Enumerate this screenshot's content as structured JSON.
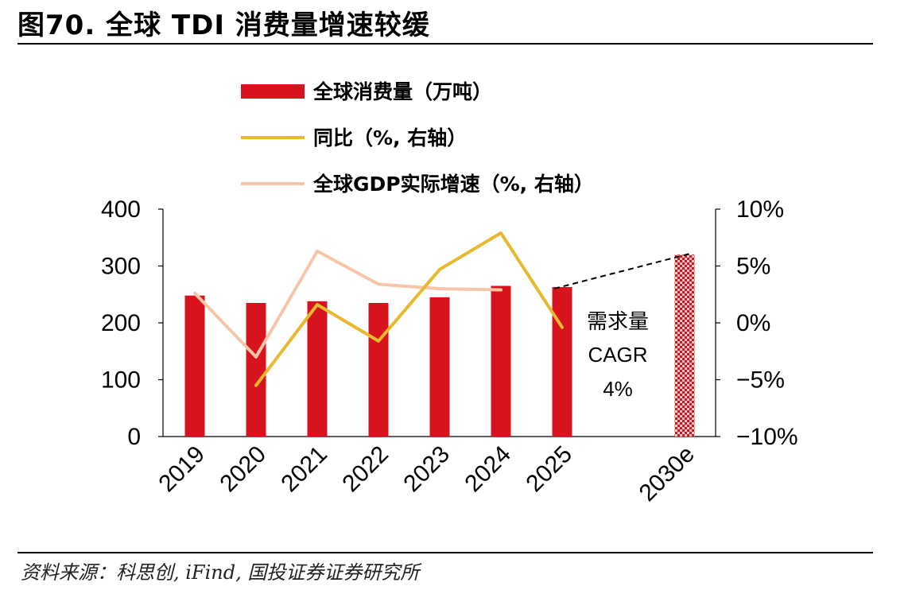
{
  "header": {
    "title": "图70. 全球 TDI 消费量增速较缓"
  },
  "footer": {
    "source": "资料来源：科思创, iFind, 国投证券证券研究所"
  },
  "colors": {
    "bar": "#d7141e",
    "yoy_line": "#e8b82e",
    "gdp_line": "#f7c6a8",
    "hatch_bg": "#f3c9cc"
  },
  "chart_data": {
    "type": "bar",
    "categories": [
      "2019",
      "2020",
      "2021",
      "2022",
      "2023",
      "2024",
      "2025",
      "",
      "2030e"
    ],
    "ylim": [
      0,
      400
    ],
    "y_ticks": [
      "0",
      "100",
      "200",
      "300",
      "400"
    ],
    "y2lim": [
      -10,
      10
    ],
    "y2_ticks": [
      "−10%",
      "−5%",
      "0%",
      "5%",
      "10%"
    ],
    "legend": [
      {
        "key": "consumption",
        "label": "全球消费量（万吨）",
        "marker": "bar"
      },
      {
        "key": "yoy",
        "label": "同比（%, 右轴）",
        "marker": "line"
      },
      {
        "key": "gdp",
        "label": "全球GDP实际增速（%, 右轴）",
        "marker": "line"
      }
    ],
    "series": [
      {
        "name": "全球消费量（万吨）",
        "type": "bar",
        "axis": "left",
        "values": [
          248,
          235,
          238,
          235,
          245,
          265,
          263,
          null,
          320
        ],
        "forecast_index": 8
      },
      {
        "name": "同比（%, 右轴）",
        "type": "line",
        "axis": "right",
        "values": [
          null,
          -5.5,
          1.6,
          -1.6,
          4.7,
          7.9,
          -0.4,
          null,
          null
        ]
      },
      {
        "name": "全球GDP实际增速（%, 右轴）",
        "type": "line",
        "axis": "right",
        "values": [
          2.6,
          -3.0,
          6.3,
          3.4,
          3.0,
          2.9,
          null,
          null,
          null
        ]
      }
    ],
    "annotation": {
      "lines": [
        "需求量",
        "CAGR",
        "4%"
      ],
      "trend_from": {
        "category": "2025",
        "value": 263
      },
      "trend_to": {
        "category": "2030e",
        "value": 320
      }
    }
  }
}
